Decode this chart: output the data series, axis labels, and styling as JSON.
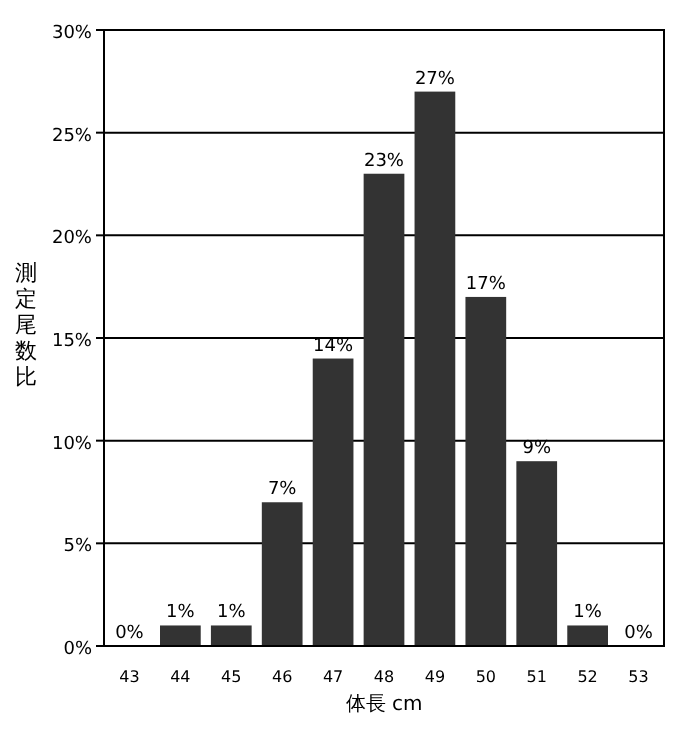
{
  "chart_data": {
    "type": "bar",
    "xlabel": "体長 cm",
    "ylabel": "測定尾数比",
    "categories": [
      "43",
      "44",
      "45",
      "46",
      "47",
      "48",
      "49",
      "50",
      "51",
      "52",
      "53"
    ],
    "values": [
      0,
      1,
      1,
      7,
      14,
      23,
      27,
      17,
      9,
      1,
      0
    ],
    "value_labels": [
      "0%",
      "1%",
      "1%",
      "7%",
      "14%",
      "23%",
      "27%",
      "17%",
      "9%",
      "1%",
      "0%"
    ],
    "color": "#333333",
    "ylim": [
      0,
      30
    ],
    "yticks": [
      {
        "value": 0,
        "label": "0%"
      },
      {
        "value": 5,
        "label": "5%"
      },
      {
        "value": 10,
        "label": "10%"
      },
      {
        "value": 15,
        "label": "15%"
      },
      {
        "value": 20,
        "label": "20%"
      },
      {
        "value": 25,
        "label": "25%"
      },
      {
        "value": 30,
        "label": "30%"
      }
    ],
    "grid": "y"
  }
}
